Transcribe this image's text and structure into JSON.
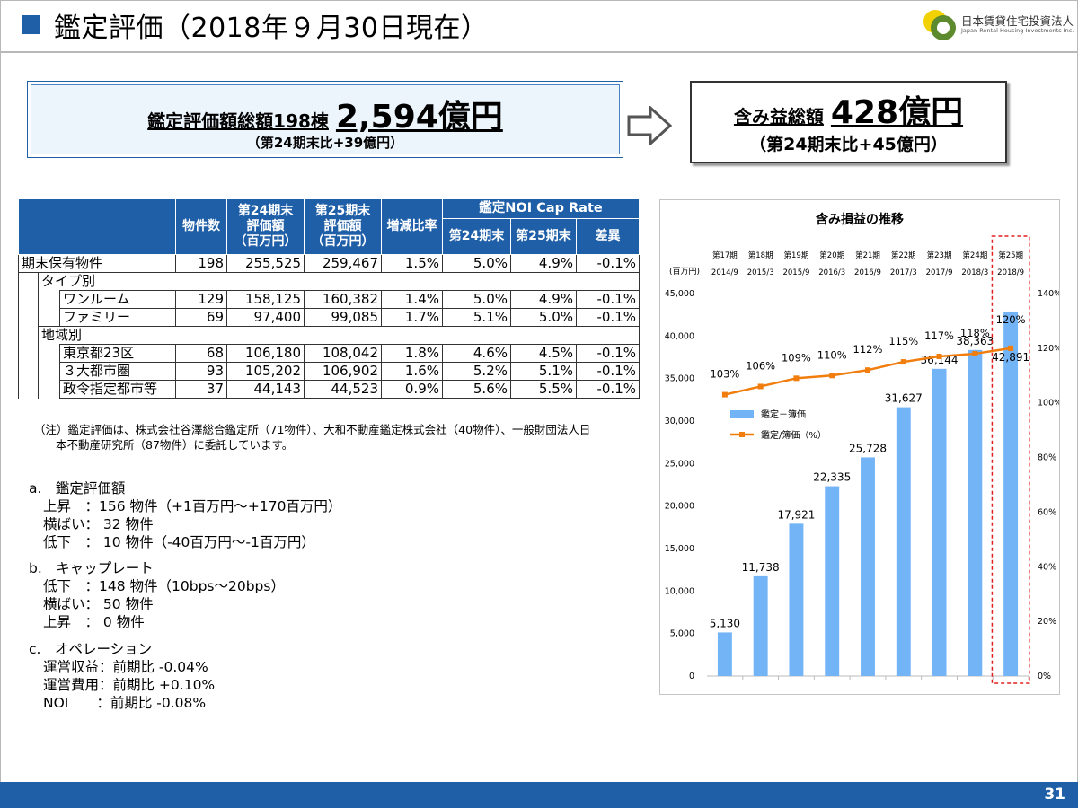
{
  "header": {
    "title": "鑑定評価（2018年９月30日現在）",
    "logo_jp": "日本賃貸住宅投資法人",
    "logo_en": "Japan Rental Housing Investments Inc."
  },
  "summary": {
    "left": {
      "label": "鑑定評価額総額198棟",
      "value": "2,594億円",
      "sub": "（第24期末比+39億円）"
    },
    "right": {
      "label": "含み益総額",
      "value": "428億円",
      "sub": "（第24期末比+45億円）"
    }
  },
  "table": {
    "headers": {
      "count": "物件数",
      "p24": [
        "第24期末",
        "評価額",
        "（百万円）"
      ],
      "p25": [
        "第25期末",
        "評価額",
        "（百万円）"
      ],
      "change": "増減比率",
      "cap_group": "鑑定NOI Cap Rate",
      "cap24": "第24期末",
      "cap25": "第25期末",
      "diff": "差異"
    },
    "rows": [
      {
        "label": "期末保有物件",
        "count": "198",
        "p24": "255,525",
        "p25": "259,467",
        "change": "1.5%",
        "cap24": "5.0%",
        "cap25": "4.9%",
        "diff": "-0.1%"
      },
      {
        "label": "タイプ別"
      },
      {
        "label": "ワンルーム",
        "count": "129",
        "p24": "158,125",
        "p25": "160,382",
        "change": "1.4%",
        "cap24": "5.0%",
        "cap25": "4.9%",
        "diff": "-0.1%"
      },
      {
        "label": "ファミリー",
        "count": "69",
        "p24": "97,400",
        "p25": "99,085",
        "change": "1.7%",
        "cap24": "5.1%",
        "cap25": "5.0%",
        "diff": "-0.1%"
      },
      {
        "label": "地域別"
      },
      {
        "label": "東京都23区",
        "count": "68",
        "p24": "106,180",
        "p25": "108,042",
        "change": "1.8%",
        "cap24": "4.6%",
        "cap25": "4.5%",
        "diff": "-0.1%"
      },
      {
        "label": "３大都市圏",
        "count": "93",
        "p24": "105,202",
        "p25": "106,902",
        "change": "1.6%",
        "cap24": "5.2%",
        "cap25": "5.1%",
        "diff": "-0.1%"
      },
      {
        "label": "政令指定都市等",
        "count": "37",
        "p24": "44,143",
        "p25": "44,523",
        "change": "0.9%",
        "cap24": "5.6%",
        "cap25": "5.5%",
        "diff": "-0.1%"
      }
    ]
  },
  "note": {
    "line1": "（注）鑑定評価は、株式会社谷澤総合鑑定所（71物件）、大和不動産鑑定株式会社（40物件）、一般財団法人日",
    "line2": "本不動産研究所（87物件）に委託しています。"
  },
  "sections": {
    "a": {
      "head": "a.　鑑定評価額",
      "rows": [
        "上昇　：156 物件（+1百万円～+170百万円）",
        "横ばい：  32 物件",
        "低下　：  10 物件（-40百万円～-1百万円）"
      ]
    },
    "b": {
      "head": "b.　キャップレート",
      "rows": [
        "低下　：148 物件（10bps～20bps）",
        "横ばい：  50 物件",
        "上昇　：    0 物件"
      ]
    },
    "c": {
      "head": "c.　オペレーション",
      "rows": [
        "運営収益：前期比  -0.04%",
        "運営費用：前期比 +0.10%",
        "NOI　　：前期比  -0.08%"
      ]
    }
  },
  "chart_data": {
    "type": "bar",
    "title": "含み損益の推移",
    "ylabel": "(百万円)",
    "periods": [
      "第17期",
      "第18期",
      "第19期",
      "第20期",
      "第21期",
      "第22期",
      "第23期",
      "第24期",
      "第25期"
    ],
    "dates": [
      "2014/9",
      "2015/3",
      "2015/9",
      "2016/3",
      "2016/9",
      "2017/3",
      "2017/9",
      "2018/3",
      "2018/9"
    ],
    "series": [
      {
        "name": "鑑定－簿価",
        "kind": "bar",
        "values": [
          5130,
          11738,
          17921,
          22335,
          25728,
          31627,
          36144,
          38363,
          42891
        ],
        "labels": [
          "5,130",
          "11,738",
          "17,921",
          "22,335",
          "25,728",
          "31,627",
          "36,144",
          "38,363",
          "42,891"
        ],
        "color": "#73b4f7"
      },
      {
        "name": "鑑定/簿価（%）",
        "kind": "line",
        "values": [
          103,
          106,
          109,
          110,
          112,
          115,
          117,
          118,
          120
        ],
        "labels": [
          "103%",
          "106%",
          "109%",
          "110%",
          "112%",
          "115%",
          "117%",
          "118%",
          "120%"
        ],
        "color": "#f07d0c"
      }
    ],
    "ylim": [
      0,
      45000
    ],
    "y_ticks": [
      "0",
      "5,000",
      "10,000",
      "15,000",
      "20,000",
      "25,000",
      "30,000",
      "35,000",
      "40,000",
      "45,000"
    ],
    "y2lim": [
      0,
      140
    ],
    "y2_ticks": [
      "0%",
      "20%",
      "40%",
      "60%",
      "80%",
      "100%",
      "120%",
      "140%"
    ],
    "legend_position": "left-middle",
    "highlight": "第25期"
  },
  "footer": {
    "page": "31"
  }
}
